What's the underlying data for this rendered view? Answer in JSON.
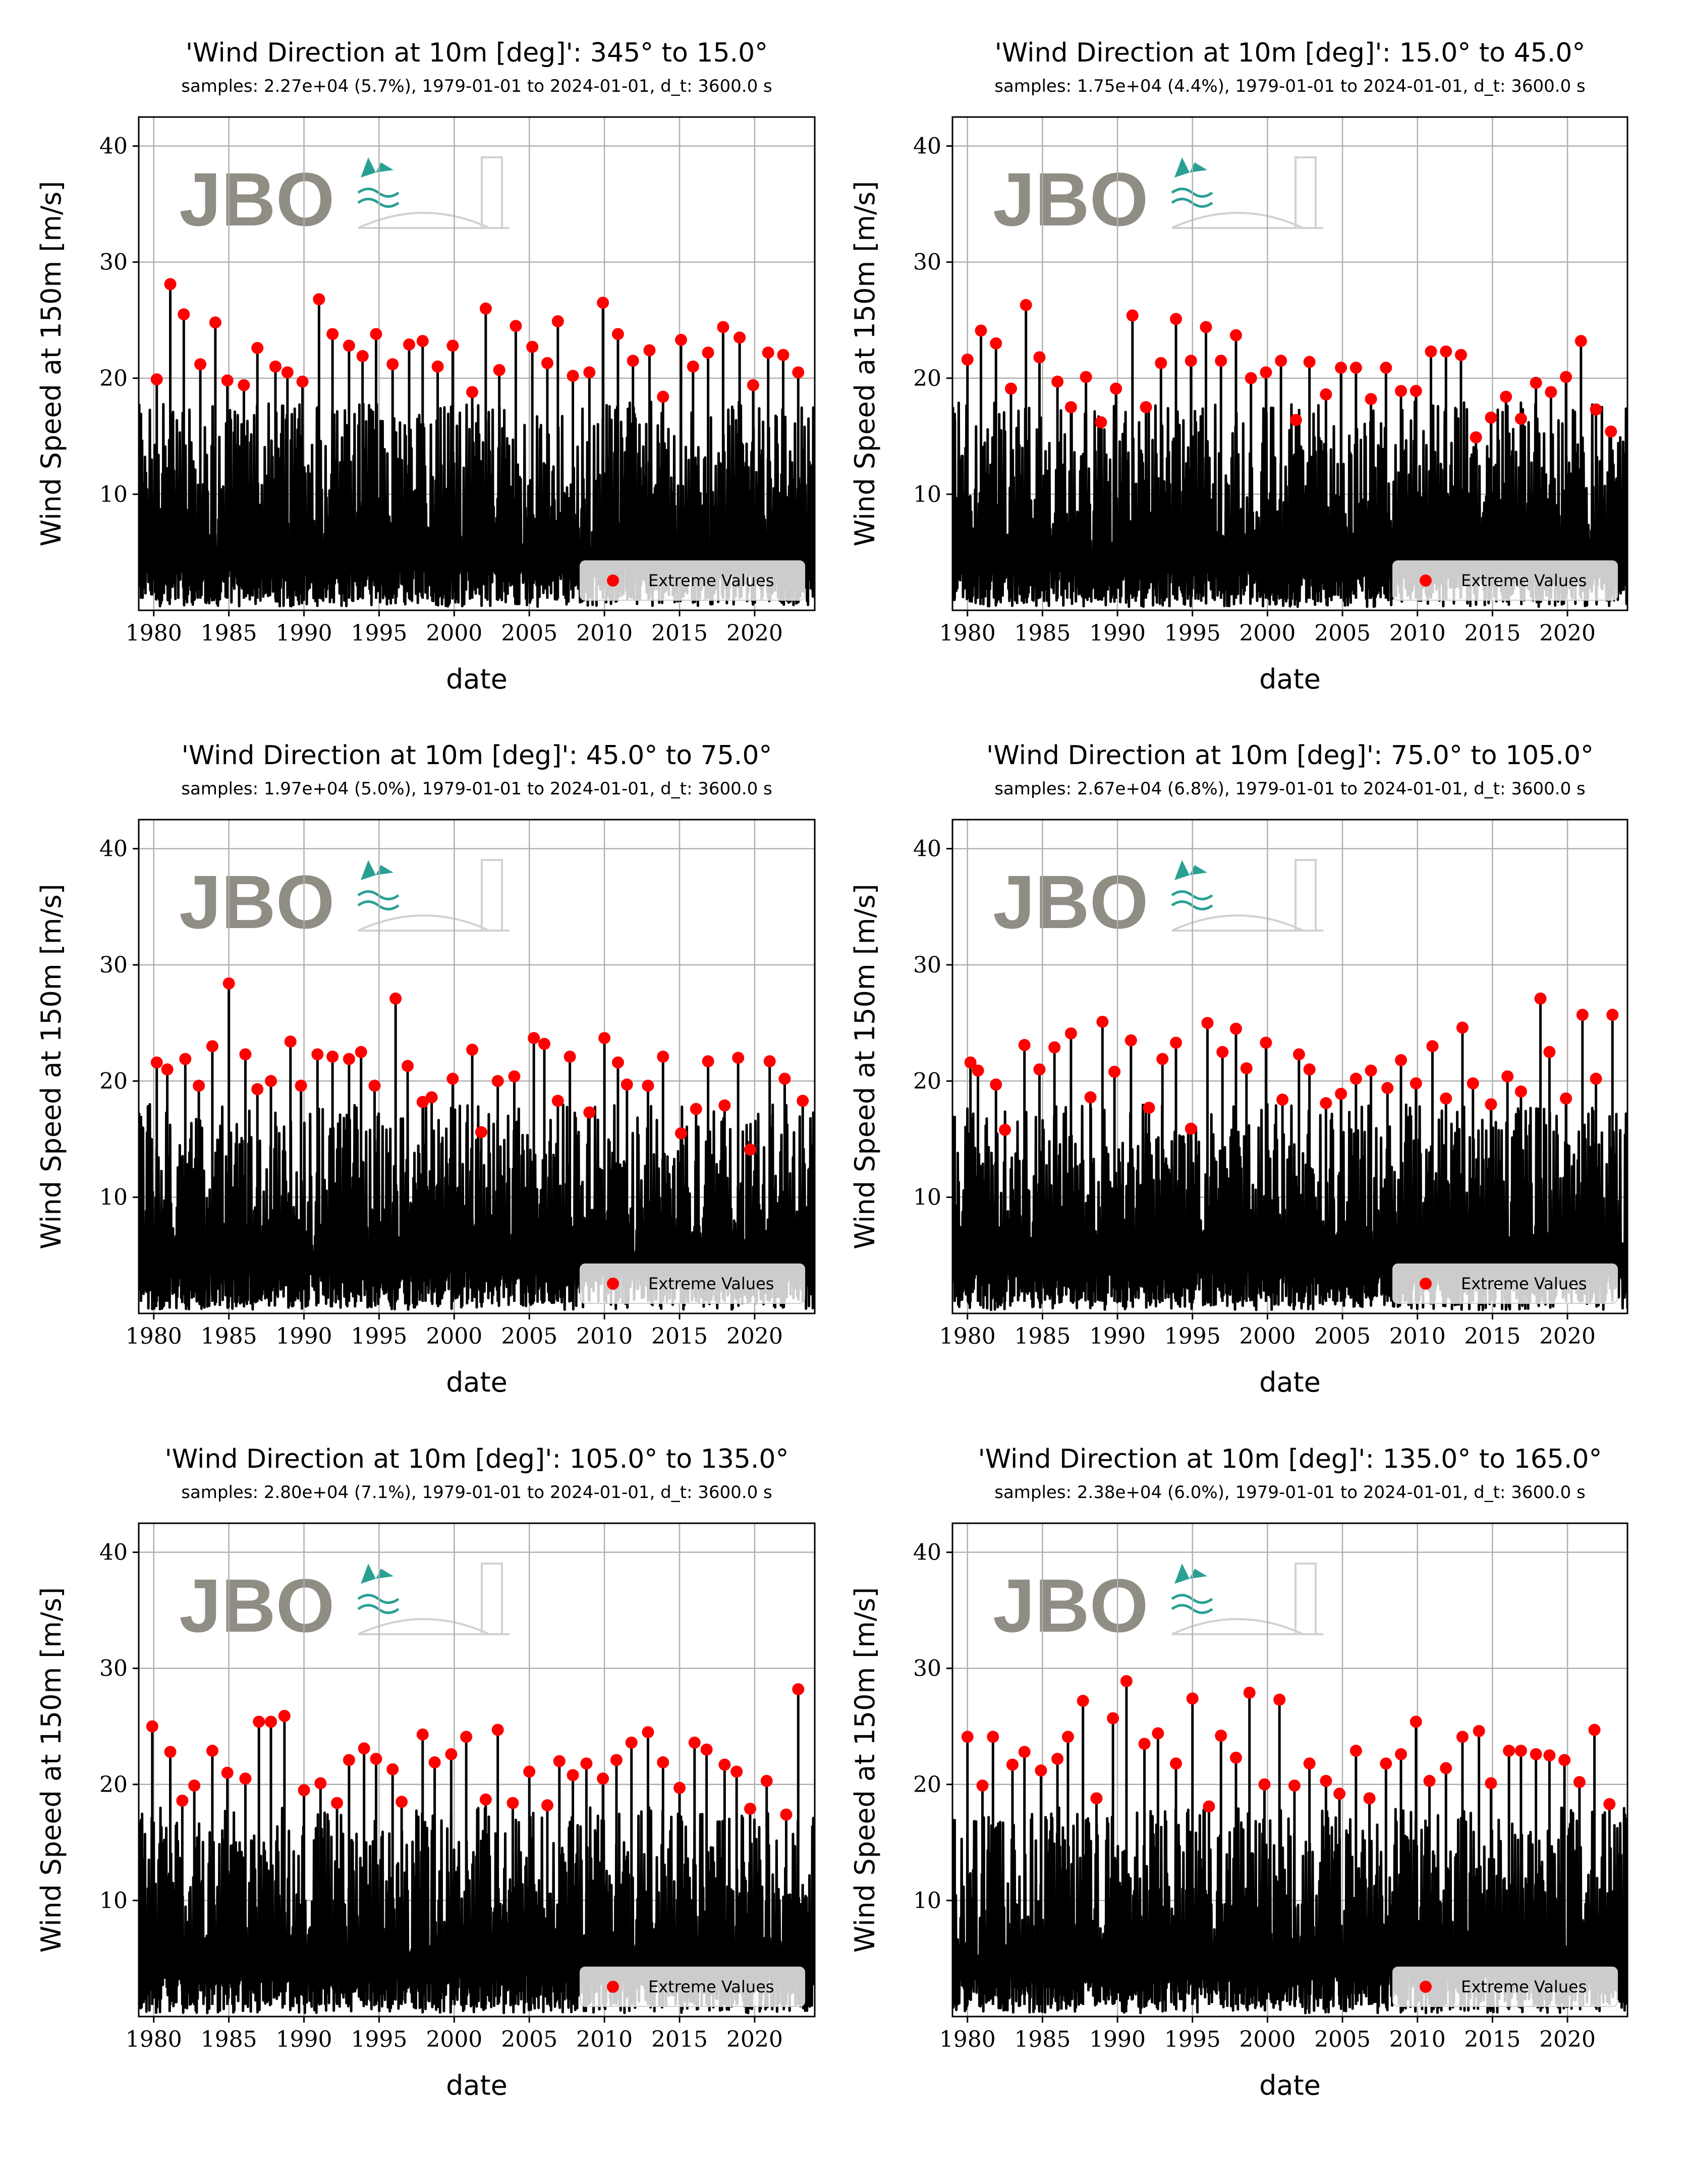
{
  "figure": {
    "logo_text": "JBO",
    "colors": {
      "series": "#000000",
      "extremes": "#ff0000",
      "grid": "#b0b0b0",
      "watermark": "#8a877e",
      "logo_accent": "#1f9b8f"
    }
  },
  "chart_data": [
    {
      "type": "line",
      "title": "'Wind Direction at 10m [deg]': 345° to 15.0°",
      "subtitle": "samples: 2.27e+04 (5.7%), 1979-01-01 to 2024-01-01, d_t: 3600.0 s",
      "xlabel": "date",
      "ylabel": "Wind Speed at 150m [m/s]",
      "xlim": [
        1979.0,
        2024.0
      ],
      "ylim": [
        0,
        42.5
      ],
      "xticks": [
        "1980",
        "1985",
        "1990",
        "1995",
        "2000",
        "2005",
        "2010",
        "2015",
        "2020"
      ],
      "yticks": [
        "10",
        "20",
        "30",
        "40"
      ],
      "grid": true,
      "legend": {
        "position": "lower-right",
        "entries": [
          "Extreme Values"
        ]
      },
      "series": [
        {
          "name": "Extreme Values",
          "type": "scatter",
          "x": [
            1980.2,
            1981.1,
            1982.0,
            1983.1,
            1984.1,
            1984.9,
            1986.0,
            1986.9,
            1988.1,
            1988.9,
            1989.9,
            1991.0,
            1991.9,
            1993.0,
            1993.9,
            1994.8,
            1995.9,
            1997.0,
            1997.9,
            1998.9,
            1999.9,
            2001.2,
            2002.1,
            2003.0,
            2004.1,
            2005.2,
            2006.2,
            2006.9,
            2007.9,
            2009.0,
            2009.9,
            2010.9,
            2011.9,
            2013.0,
            2013.9,
            2015.1,
            2015.9,
            2016.9,
            2017.9,
            2019.0,
            2019.9,
            2020.9,
            2021.9,
            2022.9
          ],
          "y": [
            19.9,
            28.1,
            25.5,
            21.2,
            24.8,
            19.8,
            19.4,
            22.6,
            21.0,
            20.5,
            19.7,
            26.8,
            23.8,
            22.8,
            21.9,
            23.8,
            21.2,
            22.9,
            23.2,
            21.0,
            22.8,
            18.8,
            26.0,
            20.7,
            24.5,
            22.7,
            21.3,
            24.9,
            20.2,
            20.5,
            26.5,
            23.8,
            21.5,
            22.4,
            18.4,
            23.3,
            21.0,
            22.2,
            24.4,
            23.5,
            19.4,
            22.2,
            22.0,
            20.5
          ]
        }
      ]
    },
    {
      "type": "line",
      "title": "'Wind Direction at 10m [deg]': 15.0° to 45.0°",
      "subtitle": "samples: 1.75e+04 (4.4%), 1979-01-01 to 2024-01-01, d_t: 3600.0 s",
      "xlabel": "date",
      "ylabel": "Wind Speed at 150m [m/s]",
      "xlim": [
        1979.0,
        2024.0
      ],
      "ylim": [
        0,
        42.5
      ],
      "xticks": [
        "1980",
        "1985",
        "1990",
        "1995",
        "2000",
        "2005",
        "2010",
        "2015",
        "2020"
      ],
      "yticks": [
        "10",
        "20",
        "30",
        "40"
      ],
      "grid": true,
      "legend": {
        "position": "lower-right",
        "entries": [
          "Extreme Values"
        ]
      },
      "series": [
        {
          "name": "Extreme Values",
          "type": "scatter",
          "x": [
            1980.0,
            1980.9,
            1981.9,
            1982.9,
            1983.9,
            1984.8,
            1986.0,
            1986.9,
            1987.9,
            1988.9,
            1989.9,
            1991.0,
            1991.9,
            1992.9,
            1993.9,
            1994.9,
            1995.9,
            1996.9,
            1997.9,
            1998.9,
            1999.9,
            2000.9,
            2001.9,
            2002.8,
            2003.9,
            2004.9,
            2005.9,
            2006.9,
            2007.9,
            2008.9,
            2009.9,
            2010.9,
            2011.9,
            2012.9,
            2013.9,
            2014.9,
            2015.9,
            2016.9,
            2017.9,
            2018.9,
            2019.9,
            2020.9,
            2021.9,
            2022.9
          ],
          "y": [
            21.6,
            24.1,
            23.0,
            19.1,
            26.3,
            21.8,
            19.7,
            17.5,
            20.1,
            16.2,
            19.1,
            25.4,
            17.5,
            21.3,
            25.1,
            21.5,
            24.4,
            21.5,
            23.7,
            20.0,
            20.5,
            21.5,
            16.4,
            21.4,
            18.6,
            20.9,
            20.9,
            18.2,
            20.9,
            18.9,
            18.9,
            22.3,
            22.3,
            22.0,
            14.9,
            16.6,
            18.4,
            16.5,
            19.6,
            18.8,
            20.1,
            23.2,
            17.3,
            15.4
          ]
        }
      ]
    },
    {
      "type": "line",
      "title": "'Wind Direction at 10m [deg]': 45.0° to 75.0°",
      "subtitle": "samples: 1.97e+04 (5.0%), 1979-01-01 to 2024-01-01, d_t: 3600.0 s",
      "xlabel": "date",
      "ylabel": "Wind Speed at 150m [m/s]",
      "xlim": [
        1979.0,
        2024.0
      ],
      "ylim": [
        0,
        42.5
      ],
      "xticks": [
        "1980",
        "1985",
        "1990",
        "1995",
        "2000",
        "2005",
        "2010",
        "2015",
        "2020"
      ],
      "yticks": [
        "10",
        "20",
        "30",
        "40"
      ],
      "grid": true,
      "legend": {
        "position": "lower-right",
        "entries": [
          "Extreme Values"
        ]
      },
      "series": [
        {
          "name": "Extreme Values",
          "type": "scatter",
          "x": [
            1980.2,
            1980.9,
            1982.1,
            1983.0,
            1983.9,
            1985.0,
            1986.1,
            1986.9,
            1987.8,
            1989.1,
            1989.8,
            1990.9,
            1991.9,
            1993.0,
            1993.8,
            1994.7,
            1996.1,
            1996.9,
            1997.9,
            1998.5,
            1999.9,
            2001.2,
            2001.8,
            2002.9,
            2004.0,
            2005.3,
            2006.0,
            2006.9,
            2007.7,
            2009.0,
            2010.0,
            2010.9,
            2011.5,
            2012.9,
            2013.9,
            2015.1,
            2016.1,
            2016.9,
            2018.0,
            2018.9,
            2019.7,
            2021.0,
            2022.0,
            2023.2
          ],
          "y": [
            21.6,
            21.0,
            21.9,
            19.6,
            23.0,
            28.4,
            22.3,
            19.3,
            20.0,
            23.4,
            19.6,
            22.3,
            22.1,
            21.9,
            22.5,
            19.6,
            27.1,
            21.3,
            18.2,
            18.6,
            20.2,
            22.7,
            15.6,
            20.0,
            20.4,
            23.7,
            23.2,
            18.3,
            22.1,
            17.3,
            23.7,
            21.6,
            19.7,
            19.6,
            22.1,
            15.5,
            17.6,
            21.7,
            17.9,
            22.0,
            14.1,
            21.7,
            20.2,
            18.3
          ]
        }
      ]
    },
    {
      "type": "line",
      "title": "'Wind Direction at 10m [deg]': 75.0° to 105.0°",
      "subtitle": "samples: 2.67e+04 (6.8%), 1979-01-01 to 2024-01-01, d_t: 3600.0 s",
      "xlabel": "date",
      "ylabel": "Wind Speed at 150m [m/s]",
      "xlim": [
        1979.0,
        2024.0
      ],
      "ylim": [
        0,
        42.5
      ],
      "xticks": [
        "1980",
        "1985",
        "1990",
        "1995",
        "2000",
        "2005",
        "2010",
        "2015",
        "2020"
      ],
      "yticks": [
        "10",
        "20",
        "30",
        "40"
      ],
      "grid": true,
      "legend": {
        "position": "lower-right",
        "entries": [
          "Extreme Values"
        ]
      },
      "series": [
        {
          "name": "Extreme Values",
          "type": "scatter",
          "x": [
            1980.2,
            1980.7,
            1981.9,
            1982.5,
            1983.8,
            1984.8,
            1985.8,
            1986.9,
            1988.2,
            1989.0,
            1989.8,
            1990.9,
            1992.1,
            1993.0,
            1993.9,
            1994.9,
            1996.0,
            1997.0,
            1997.9,
            1998.6,
            1999.9,
            2001.0,
            2002.1,
            2002.8,
            2003.9,
            2004.9,
            2005.9,
            2006.9,
            2008.0,
            2008.9,
            2009.9,
            2011.0,
            2011.9,
            2013.0,
            2013.7,
            2014.9,
            2016.0,
            2016.9,
            2018.2,
            2018.8,
            2019.9,
            2021.0,
            2021.9,
            2023.0
          ],
          "y": [
            21.6,
            20.9,
            19.7,
            15.8,
            23.1,
            21.0,
            22.9,
            24.1,
            18.6,
            25.1,
            20.8,
            23.5,
            17.7,
            21.9,
            23.3,
            15.9,
            25.0,
            22.5,
            24.5,
            21.1,
            23.3,
            18.4,
            22.3,
            21.0,
            18.1,
            18.9,
            20.2,
            20.9,
            19.4,
            21.8,
            19.8,
            23.0,
            18.5,
            24.6,
            19.8,
            18.0,
            20.4,
            19.1,
            27.1,
            22.5,
            18.5,
            25.7,
            20.2,
            25.7
          ]
        }
      ]
    },
    {
      "type": "line",
      "title": "'Wind Direction at 10m [deg]': 105.0° to 135.0°",
      "subtitle": "samples: 2.80e+04 (7.1%), 1979-01-01 to 2024-01-01, d_t: 3600.0 s",
      "xlabel": "date",
      "ylabel": "Wind Speed at 150m [m/s]",
      "xlim": [
        1979.0,
        2024.0
      ],
      "ylim": [
        0,
        42.5
      ],
      "xticks": [
        "1980",
        "1985",
        "1990",
        "1995",
        "2000",
        "2005",
        "2010",
        "2015",
        "2020"
      ],
      "yticks": [
        "10",
        "20",
        "30",
        "40"
      ],
      "grid": true,
      "legend": {
        "position": "lower-right",
        "entries": [
          "Extreme Values"
        ]
      },
      "series": [
        {
          "name": "Extreme Values",
          "type": "scatter",
          "x": [
            1979.9,
            1981.1,
            1981.9,
            1982.7,
            1983.9,
            1984.9,
            1986.1,
            1987.0,
            1987.8,
            1988.7,
            1990.0,
            1991.1,
            1992.2,
            1993.0,
            1994.0,
            1994.8,
            1995.9,
            1996.5,
            1997.9,
            1998.7,
            1999.8,
            2000.8,
            2002.1,
            2002.9,
            2003.9,
            2005.0,
            2006.2,
            2007.0,
            2007.9,
            2008.8,
            2009.9,
            2010.8,
            2011.8,
            2012.9,
            2013.9,
            2015.0,
            2016.0,
            2016.8,
            2018.0,
            2018.8,
            2019.7,
            2020.8,
            2022.1,
            2022.9
          ],
          "y": [
            25.0,
            22.8,
            18.6,
            19.9,
            22.9,
            21.0,
            20.5,
            25.4,
            25.4,
            25.9,
            19.5,
            20.1,
            18.4,
            22.1,
            23.1,
            22.2,
            21.3,
            18.5,
            24.3,
            21.9,
            22.6,
            24.1,
            18.7,
            24.7,
            18.4,
            21.1,
            18.2,
            22.0,
            20.8,
            21.8,
            20.5,
            22.1,
            23.6,
            24.5,
            21.9,
            19.7,
            23.6,
            23.0,
            21.7,
            21.1,
            17.9,
            20.3,
            17.4,
            28.2
          ]
        }
      ]
    },
    {
      "type": "line",
      "title": "'Wind Direction at 10m [deg]': 135.0° to 165.0°",
      "subtitle": "samples: 2.38e+04 (6.0%), 1979-01-01 to 2024-01-01, d_t: 3600.0 s",
      "xlabel": "date",
      "ylabel": "Wind Speed at 150m [m/s]",
      "xlim": [
        1979.0,
        2024.0
      ],
      "ylim": [
        0,
        42.5
      ],
      "xticks": [
        "1980",
        "1985",
        "1990",
        "1995",
        "2000",
        "2005",
        "2010",
        "2015",
        "2020"
      ],
      "yticks": [
        "10",
        "20",
        "30",
        "40"
      ],
      "grid": true,
      "legend": {
        "position": "lower-right",
        "entries": [
          "Extreme Values"
        ]
      },
      "series": [
        {
          "name": "Extreme Values",
          "type": "scatter",
          "x": [
            1980.0,
            1981.0,
            1981.7,
            1983.0,
            1983.8,
            1984.9,
            1986.0,
            1986.7,
            1987.7,
            1988.6,
            1989.7,
            1990.6,
            1991.8,
            1992.7,
            1993.9,
            1995.0,
            1996.1,
            1996.9,
            1997.9,
            1998.8,
            1999.8,
            2000.8,
            2001.8,
            2002.8,
            2003.9,
            2004.8,
            2005.9,
            2006.8,
            2007.9,
            2008.9,
            2009.9,
            2010.8,
            2011.9,
            2013.0,
            2014.1,
            2014.9,
            2016.1,
            2016.9,
            2017.9,
            2018.8,
            2019.8,
            2020.8,
            2021.8,
            2022.8
          ],
          "y": [
            24.1,
            19.9,
            24.1,
            21.7,
            22.8,
            21.2,
            22.2,
            24.1,
            27.2,
            18.8,
            25.7,
            28.9,
            23.5,
            24.4,
            21.8,
            27.4,
            18.1,
            24.2,
            22.3,
            27.9,
            20.0,
            27.3,
            19.9,
            21.8,
            20.3,
            19.2,
            22.9,
            18.8,
            21.8,
            22.6,
            25.4,
            20.3,
            21.4,
            24.1,
            24.6,
            20.1,
            22.9,
            22.9,
            22.6,
            22.5,
            22.1,
            20.2,
            24.7,
            18.3
          ]
        }
      ]
    }
  ]
}
